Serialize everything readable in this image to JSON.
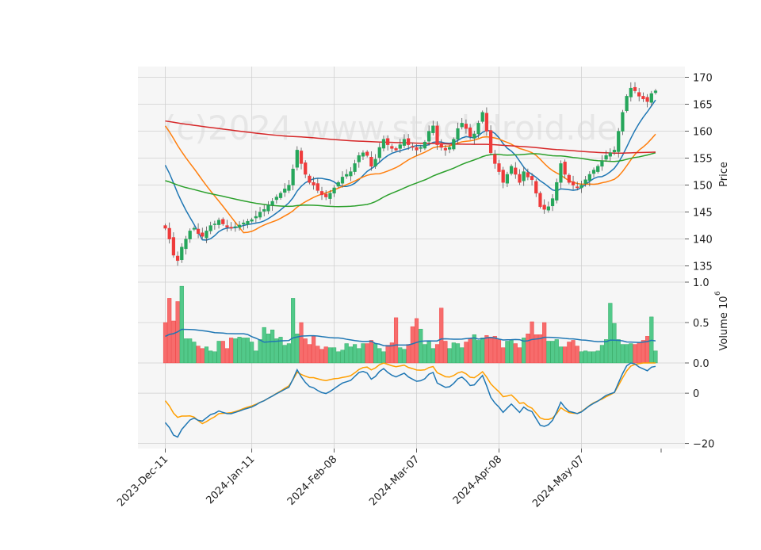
{
  "watermark": "(c)2024 www.stockdroid.de",
  "chart_data": {
    "type": "candlestick",
    "x_ticks": [
      "2023-Dec-11",
      "2024-Jan-11",
      "2024-Feb-08",
      "2024-Mar-07",
      "2024-Apr-08",
      "2024-May-07"
    ],
    "x_tick_index": [
      0,
      21,
      41,
      61,
      81,
      101
    ],
    "n_bars": 120,
    "price_panel": {
      "ylabel": "Price",
      "ylim": [
        132,
        172
      ],
      "yticks": [
        135,
        140,
        145,
        150,
        155,
        160,
        165,
        170
      ],
      "grid": true,
      "closes": [
        142.0,
        140.0,
        137.0,
        136.0,
        138.5,
        140.0,
        141.5,
        142.0,
        141.0,
        140.5,
        141.5,
        142.5,
        142.8,
        143.5,
        142.8,
        142.2,
        142.0,
        142.3,
        142.6,
        143.0,
        143.3,
        143.6,
        144.2,
        145.0,
        145.5,
        146.3,
        147.0,
        147.8,
        148.5,
        149.3,
        150.0,
        153.0,
        156.5,
        154.0,
        152.0,
        150.5,
        150.0,
        149.0,
        148.2,
        147.8,
        148.5,
        149.5,
        150.5,
        151.5,
        152.0,
        152.5,
        154.0,
        155.5,
        156.0,
        155.5,
        153.5,
        154.8,
        157.0,
        158.5,
        157.5,
        156.8,
        156.5,
        157.5,
        158.5,
        157.5,
        157.0,
        156.5,
        157.0,
        158.0,
        160.0,
        161.0,
        157.5,
        157.0,
        156.5,
        157.0,
        158.5,
        160.5,
        161.5,
        160.5,
        159.0,
        159.5,
        161.5,
        163.5,
        160.0,
        156.0,
        154.0,
        152.5,
        150.5,
        152.0,
        153.5,
        152.0,
        150.5,
        152.5,
        151.5,
        151.0,
        148.5,
        146.0,
        145.5,
        146.0,
        147.5,
        150.5,
        154.0,
        152.0,
        150.5,
        150.0,
        149.5,
        150.0,
        151.0,
        152.0,
        152.8,
        153.5,
        154.5,
        155.5,
        156.0,
        156.5,
        160.0,
        163.5,
        166.5,
        168.0,
        167.5,
        166.5,
        166.0,
        165.5,
        167.0,
        167.5
      ],
      "sma_periods": [
        10,
        20,
        50,
        200
      ],
      "sma_colors": [
        "#1f77b4",
        "#ff7f0e",
        "#2ca02c",
        "#d62728"
      ]
    },
    "volume_panel": {
      "ylabel": "Volume  10^6",
      "ylim": [
        0,
        1.0
      ],
      "yticks": [
        0.0,
        0.5,
        1.0
      ],
      "volumes": [
        0.5,
        0.8,
        0.52,
        0.76,
        0.95,
        0.3,
        0.3,
        0.26,
        0.21,
        0.18,
        0.2,
        0.15,
        0.14,
        0.27,
        0.27,
        0.18,
        0.31,
        0.3,
        0.32,
        0.31,
        0.31,
        0.26,
        0.15,
        0.29,
        0.44,
        0.36,
        0.41,
        0.3,
        0.32,
        0.22,
        0.24,
        0.8,
        0.36,
        0.5,
        0.3,
        0.23,
        0.33,
        0.21,
        0.17,
        0.2,
        0.19,
        0.19,
        0.14,
        0.16,
        0.24,
        0.2,
        0.23,
        0.18,
        0.24,
        0.24,
        0.28,
        0.24,
        0.18,
        0.14,
        0.22,
        0.25,
        0.56,
        0.19,
        0.17,
        0.23,
        0.45,
        0.55,
        0.42,
        0.23,
        0.27,
        0.18,
        0.23,
        0.68,
        0.27,
        0.18,
        0.25,
        0.24,
        0.19,
        0.26,
        0.3,
        0.35,
        0.28,
        0.31,
        0.34,
        0.32,
        0.33,
        0.29,
        0.19,
        0.27,
        0.29,
        0.24,
        0.19,
        0.31,
        0.36,
        0.51,
        0.35,
        0.35,
        0.5,
        0.27,
        0.27,
        0.29,
        0.2,
        0.2,
        0.26,
        0.28,
        0.21,
        0.14,
        0.15,
        0.14,
        0.14,
        0.15,
        0.22,
        0.29,
        0.74,
        0.49,
        0.29,
        0.23,
        0.23,
        0.24,
        0.23,
        0.25,
        0.28,
        0.33,
        0.57,
        0.15
      ],
      "avg_color": "#1f77b4"
    },
    "indicator_panel": {
      "ylim": [
        -22,
        12
      ],
      "yticks": [
        -20,
        0
      ],
      "line1_color": "#1f77b4",
      "line2_color": "#ff9f00"
    },
    "colors": {
      "up": "#26a65b",
      "down": "#ef3b3b",
      "up_fill": "#52c98a",
      "down_fill": "#f76c6c",
      "panel_bg": "#f6f6f6",
      "grid": "#d0d0d0"
    }
  }
}
